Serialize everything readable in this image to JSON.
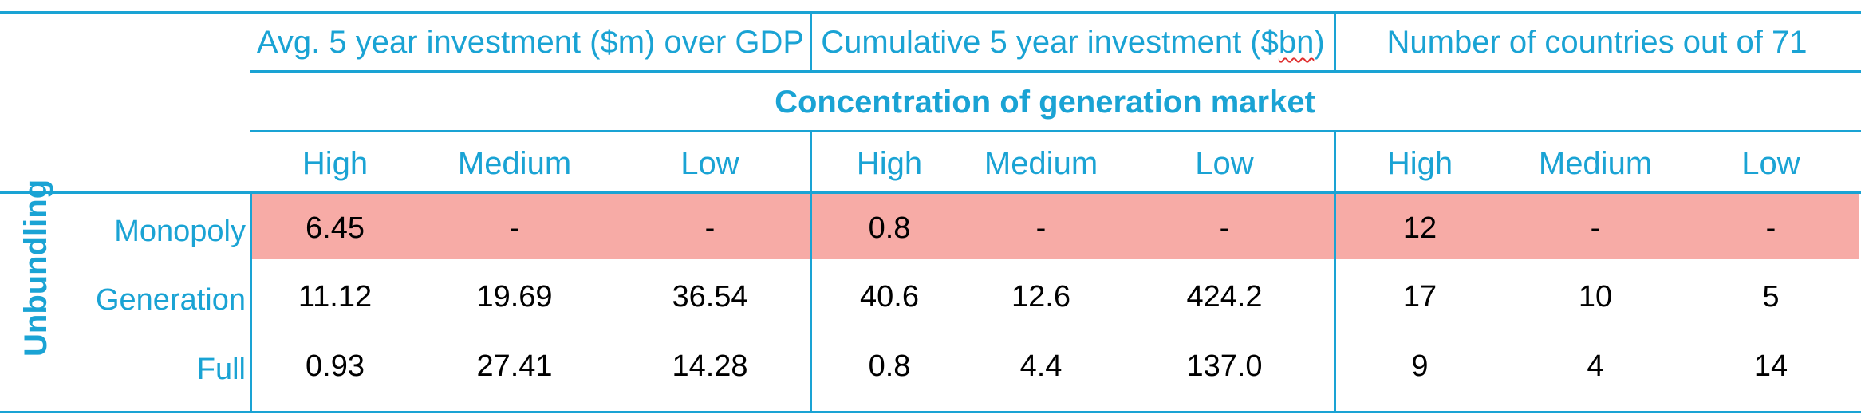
{
  "chart_data": {
    "type": "table",
    "row_group_label": "Unbundling",
    "column_groups": [
      {
        "label_parts": [
          "Avg. 5 year investment ($m) over GDP"
        ]
      },
      {
        "label_parts": [
          "Cumulative 5 year investment ($",
          "bn",
          ")"
        ]
      },
      {
        "label_parts": [
          "Number of countries out of 71"
        ]
      }
    ],
    "subheader": "Concentration of generation market",
    "columns": [
      "High",
      "Medium",
      "Low"
    ],
    "rows": [
      {
        "label": "Monopoly",
        "highlighted": true,
        "values": [
          "6.45",
          "-",
          "-",
          "0.8",
          "-",
          "-",
          "12",
          "-",
          "-"
        ]
      },
      {
        "label": "Generation",
        "highlighted": false,
        "values": [
          "11.12",
          "19.69",
          "36.54",
          "40.6",
          "12.6",
          "424.2",
          "17",
          "10",
          "5"
        ]
      },
      {
        "label": "Full",
        "highlighted": false,
        "values": [
          "0.93",
          "27.41",
          "14.28",
          "0.8",
          "4.4",
          "137.0",
          "9",
          "4",
          "14"
        ]
      }
    ],
    "colors": {
      "accent": "#1aa3d4",
      "highlight": "#f7aba6",
      "text": "#000000"
    }
  }
}
